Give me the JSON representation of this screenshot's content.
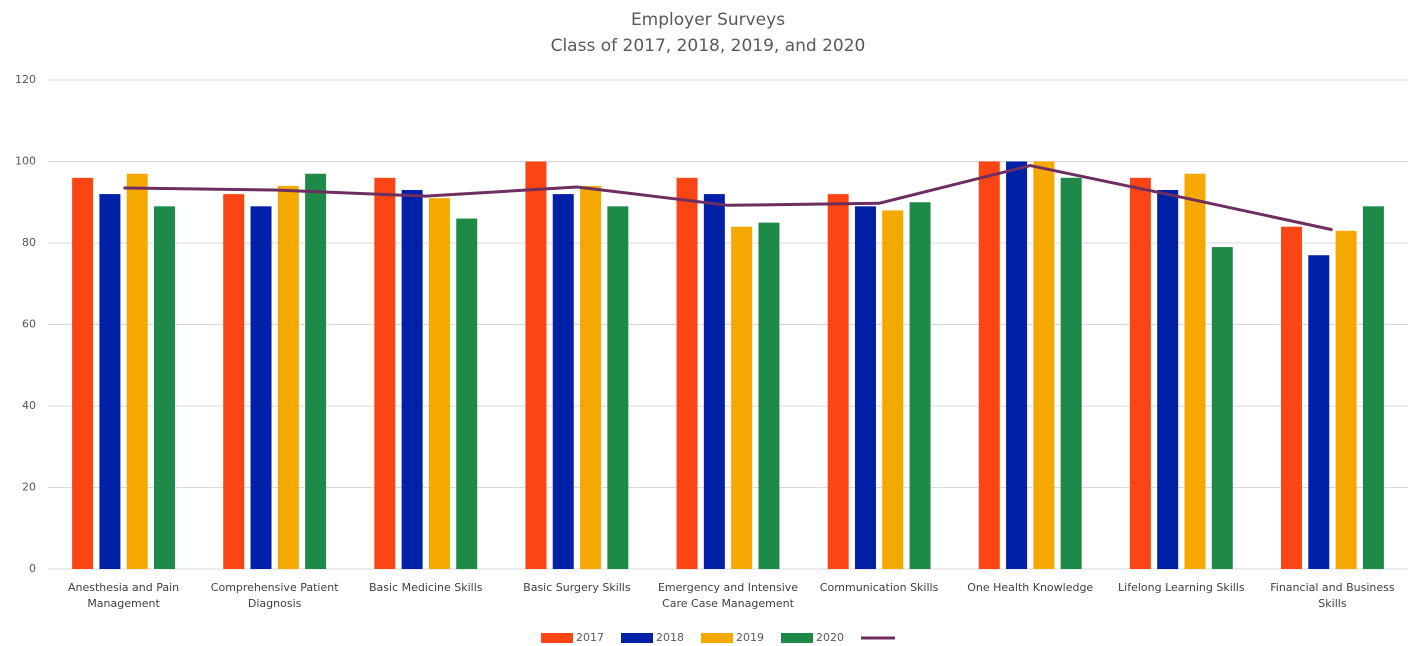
{
  "chart_data": {
    "type": "bar",
    "title": "Employer Surveys",
    "subtitle": "Class of 2017, 2018, 2019, and 2020",
    "categories": [
      "Anesthesia and Pain Management",
      "Comprehensive Patient Diagnosis",
      "Basic Medicine Skills",
      "Basic Surgery Skills",
      "Emergency and Intensive Care Case Management",
      "Communication Skills",
      "One Health Knowledge",
      "Lifelong Learning Skills",
      "Financial and Business Skills"
    ],
    "series": [
      {
        "name": "2017",
        "color": "#fc4514",
        "values": [
          96,
          92,
          96,
          100,
          96,
          92,
          100,
          96,
          84
        ]
      },
      {
        "name": "2018",
        "color": "#0020a8",
        "values": [
          92,
          89,
          93,
          92,
          92,
          89,
          100,
          93,
          77
        ]
      },
      {
        "name": "2019",
        "color": "#f5a800",
        "values": [
          97,
          94,
          91,
          94,
          84,
          88,
          100,
          97,
          83
        ]
      },
      {
        "name": "2020",
        "color": "#1e8a48",
        "values": [
          89,
          97,
          86,
          89,
          85,
          90,
          96,
          79,
          89
        ]
      },
      {
        "type": "line",
        "color": "#6e2f60",
        "values": [
          93.5,
          93,
          91.5,
          93.75,
          89.25,
          89.75,
          99,
          91.25,
          83.25
        ]
      }
    ],
    "ylim": [
      0,
      120
    ],
    "yticks": [
      0,
      20,
      40,
      60,
      80,
      100,
      120
    ],
    "grid": true,
    "legend": "bottom"
  }
}
